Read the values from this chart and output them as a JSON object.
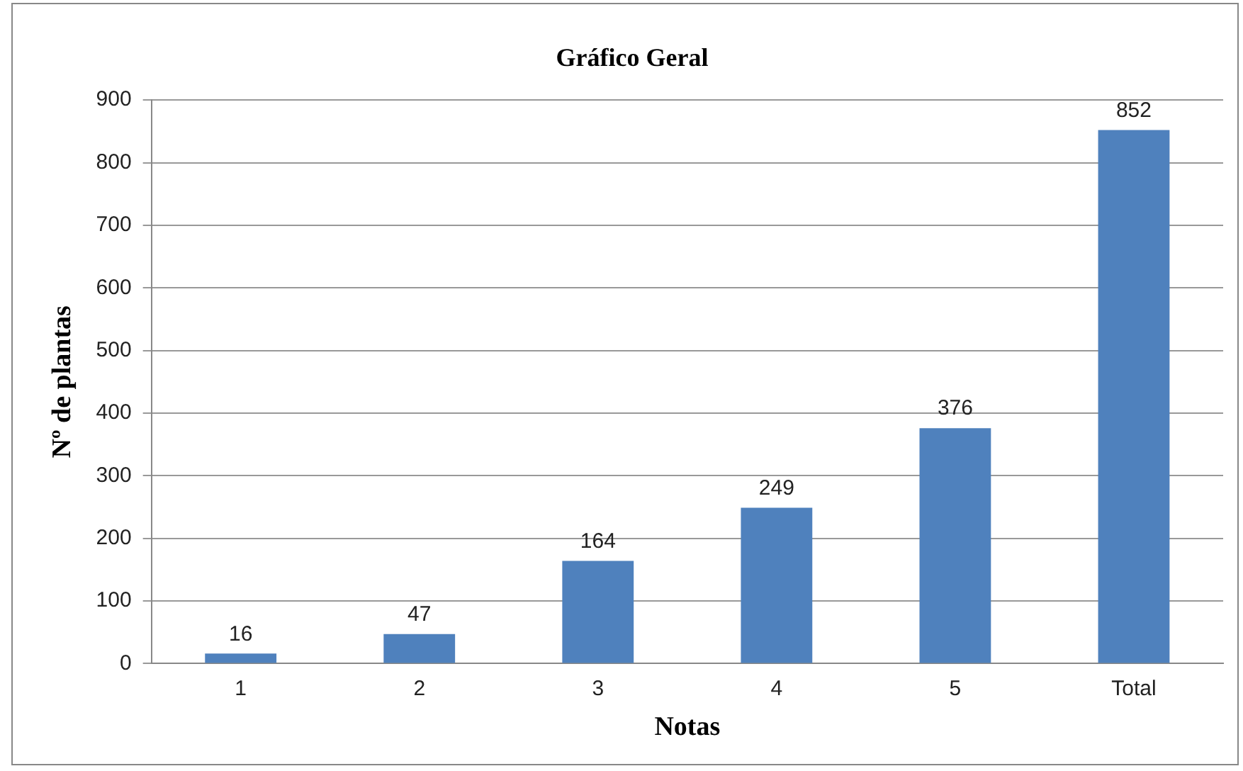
{
  "chart_data": {
    "type": "bar",
    "title": "Gráfico Geral",
    "xlabel": "Notas",
    "ylabel": "Nº de plantas",
    "categories": [
      "1",
      "2",
      "3",
      "4",
      "5",
      "Total"
    ],
    "values": [
      16,
      47,
      164,
      249,
      376,
      852
    ],
    "color": "#4f81bd",
    "ylim": [
      0,
      900
    ],
    "yticks": [
      0,
      100,
      200,
      300,
      400,
      500,
      600,
      700,
      800,
      900
    ],
    "grid": "y",
    "data_labels": true
  }
}
